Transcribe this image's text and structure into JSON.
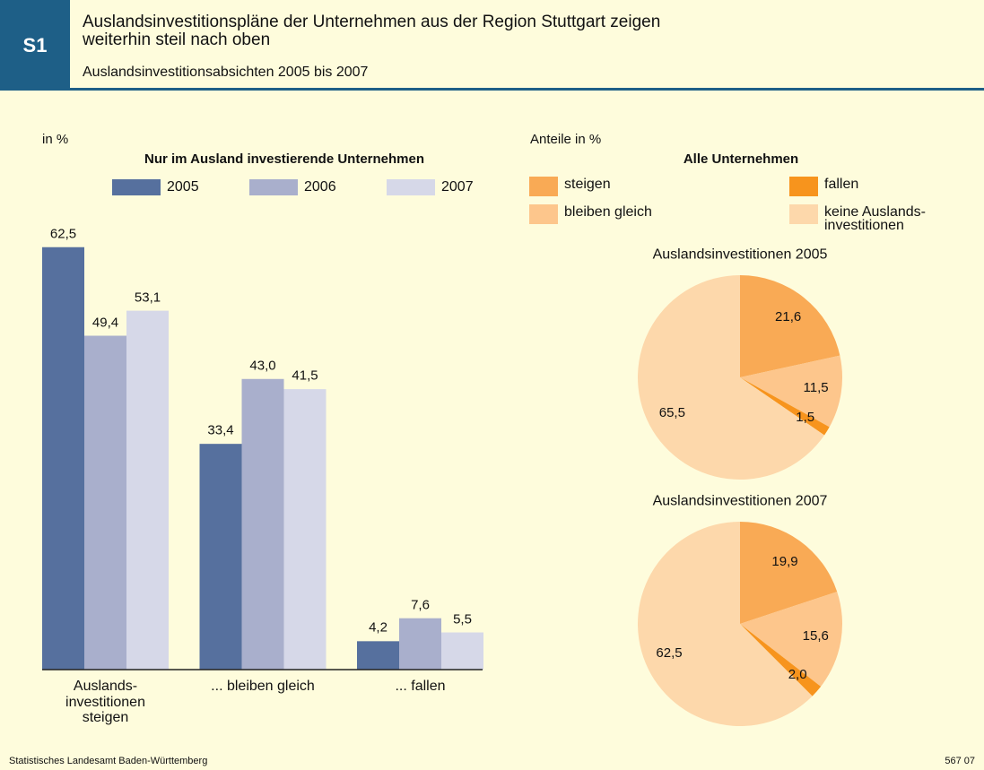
{
  "header": {
    "code": "S1",
    "title": "Auslandsinvestitionspläne der Unternehmen aus der Region Stuttgart zeigen\nweiterhin steil nach oben",
    "subtitle": "Auslandsinvestitionsabsichten 2005 bis 2007"
  },
  "footer": {
    "source": "Statistisches Landesamt Baden-Württemberg",
    "number": "567 07"
  },
  "chart_data": [
    {
      "type": "bar",
      "unit_label": "in %",
      "title": "Nur im Ausland investierende Unternehmen",
      "categories": [
        "Auslands-\ninvestitionen\nsteigen",
        "... bleiben gleich",
        "... fallen"
      ],
      "series": [
        {
          "name": "2005",
          "color": "#56709e",
          "values": [
            62.5,
            33.4,
            4.2
          ],
          "value_labels": [
            "62,5",
            "33,4",
            "4,2"
          ]
        },
        {
          "name": "2006",
          "color": "#a9afcc",
          "values": [
            49.4,
            43.0,
            7.6
          ],
          "value_labels": [
            "49,4",
            "43,0",
            "7,6"
          ]
        },
        {
          "name": "2007",
          "color": "#d6d8e8",
          "values": [
            53.1,
            41.5,
            5.5
          ],
          "value_labels": [
            "53,1",
            "41,5",
            "5,5"
          ]
        }
      ]
    },
    {
      "type": "pie",
      "unit_label": "Anteile in %",
      "title": "Alle Unternehmen",
      "labels": [
        "steigen",
        "bleiben gleich",
        "fallen",
        "keine Auslands-\ninvestitionen"
      ],
      "colors": [
        "#f9aa55",
        "#fdc68c",
        "#f7941d",
        "#fdd8ab"
      ],
      "pies": [
        {
          "title": "Auslandsinvestitionen 2005",
          "values": [
            21.6,
            11.5,
            1.5,
            65.5
          ],
          "value_labels": [
            "21,6",
            "11,5",
            "1,5",
            "65,5"
          ]
        },
        {
          "title": "Auslandsinvestitionen 2007",
          "values": [
            19.9,
            15.6,
            2.0,
            62.5
          ],
          "value_labels": [
            "19,9",
            "15,6",
            "2,0",
            "62,5"
          ]
        }
      ]
    }
  ]
}
